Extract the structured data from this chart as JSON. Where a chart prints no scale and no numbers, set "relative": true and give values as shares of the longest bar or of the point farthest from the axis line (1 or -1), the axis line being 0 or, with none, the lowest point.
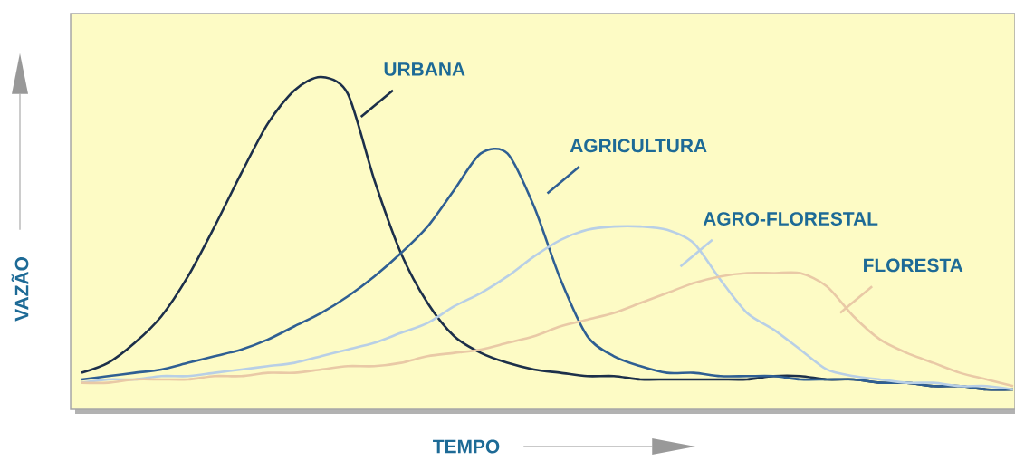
{
  "chart_data": {
    "type": "line",
    "relative": true,
    "xlabel": "TEMPO",
    "ylabel": "VAZÃO",
    "categories": [
      null,
      null,
      null,
      null,
      null,
      null,
      null,
      null,
      null,
      null,
      null,
      null,
      null,
      null,
      null,
      null,
      null,
      null,
      null,
      null,
      null,
      null,
      null,
      null,
      null,
      null,
      null,
      null,
      null,
      null,
      null,
      null,
      null,
      null,
      null,
      null
    ],
    "series": [
      {
        "name": "URBANA",
        "color": "#1c2f4a",
        "values": [
          0.11,
          0.14,
          0.2,
          0.28,
          0.4,
          0.55,
          0.71,
          0.86,
          0.96,
          1.0,
          0.95,
          0.69,
          0.47,
          0.32,
          0.22,
          0.17,
          0.14,
          0.12,
          0.11,
          0.1,
          0.1,
          0.09,
          0.09,
          0.09,
          0.09,
          0.09,
          0.1,
          0.1,
          0.09,
          0.09,
          0.08,
          0.08,
          0.07,
          0.07,
          0.06,
          0.06
        ]
      },
      {
        "name": "AGRICULTURA",
        "color": "#2f5f93",
        "values": [
          0.09,
          0.1,
          0.11,
          0.12,
          0.14,
          0.16,
          0.18,
          0.21,
          0.25,
          0.29,
          0.34,
          0.4,
          0.47,
          0.55,
          0.66,
          0.77,
          0.77,
          0.61,
          0.39,
          0.22,
          0.16,
          0.13,
          0.11,
          0.11,
          0.1,
          0.1,
          0.1,
          0.09,
          0.09,
          0.09,
          0.08,
          0.08,
          0.07,
          0.07,
          0.06,
          0.06
        ]
      },
      {
        "name": "AGRO-FLORESTAL",
        "color": "#b8cfe6",
        "values": [
          0.08,
          0.09,
          0.09,
          0.1,
          0.1,
          0.11,
          0.12,
          0.13,
          0.14,
          0.16,
          0.18,
          0.2,
          0.23,
          0.26,
          0.31,
          0.35,
          0.4,
          0.46,
          0.51,
          0.54,
          0.55,
          0.55,
          0.54,
          0.5,
          0.39,
          0.29,
          0.24,
          0.18,
          0.12,
          0.1,
          0.09,
          0.08,
          0.08,
          0.07,
          0.07,
          0.06
        ]
      },
      {
        "name": "FLORESTA",
        "color": "#e9c9a6",
        "values": [
          0.08,
          0.08,
          0.09,
          0.09,
          0.09,
          0.1,
          0.1,
          0.11,
          0.11,
          0.12,
          0.13,
          0.13,
          0.14,
          0.16,
          0.17,
          0.18,
          0.2,
          0.22,
          0.25,
          0.27,
          0.29,
          0.32,
          0.35,
          0.38,
          0.4,
          0.41,
          0.41,
          0.41,
          0.37,
          0.28,
          0.21,
          0.17,
          0.14,
          0.11,
          0.09,
          0.07
        ]
      }
    ]
  }
}
